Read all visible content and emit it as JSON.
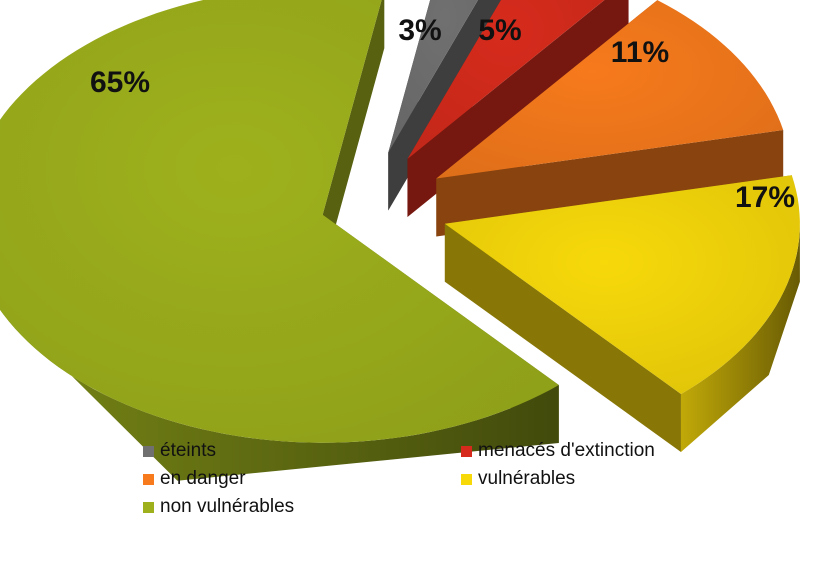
{
  "chart_data": {
    "type": "pie",
    "title": "",
    "style": "3d-exploded",
    "categories": [
      "éteints",
      "menacés d'extinction",
      "en danger",
      "vulnérables",
      "non vulnérables"
    ],
    "values": [
      3,
      5,
      11,
      17,
      65
    ],
    "labels": [
      "3%",
      "5%",
      "11%",
      "17%",
      "65%"
    ],
    "unit": "%",
    "colors": [
      "#707070",
      "#d62b1c",
      "#f77a1c",
      "#f7d90a",
      "#9eb11c"
    ],
    "legend_position": "bottom"
  },
  "legend": {
    "items": [
      {
        "label": "éteints",
        "color": "#707070"
      },
      {
        "label": "menacés d'extinction",
        "color": "#d62b1c"
      },
      {
        "label": "en danger",
        "color": "#f77a1c"
      },
      {
        "label": "vulnérables",
        "color": "#f7d90a"
      },
      {
        "label": "non vulnérables",
        "color": "#9eb11c"
      }
    ]
  }
}
